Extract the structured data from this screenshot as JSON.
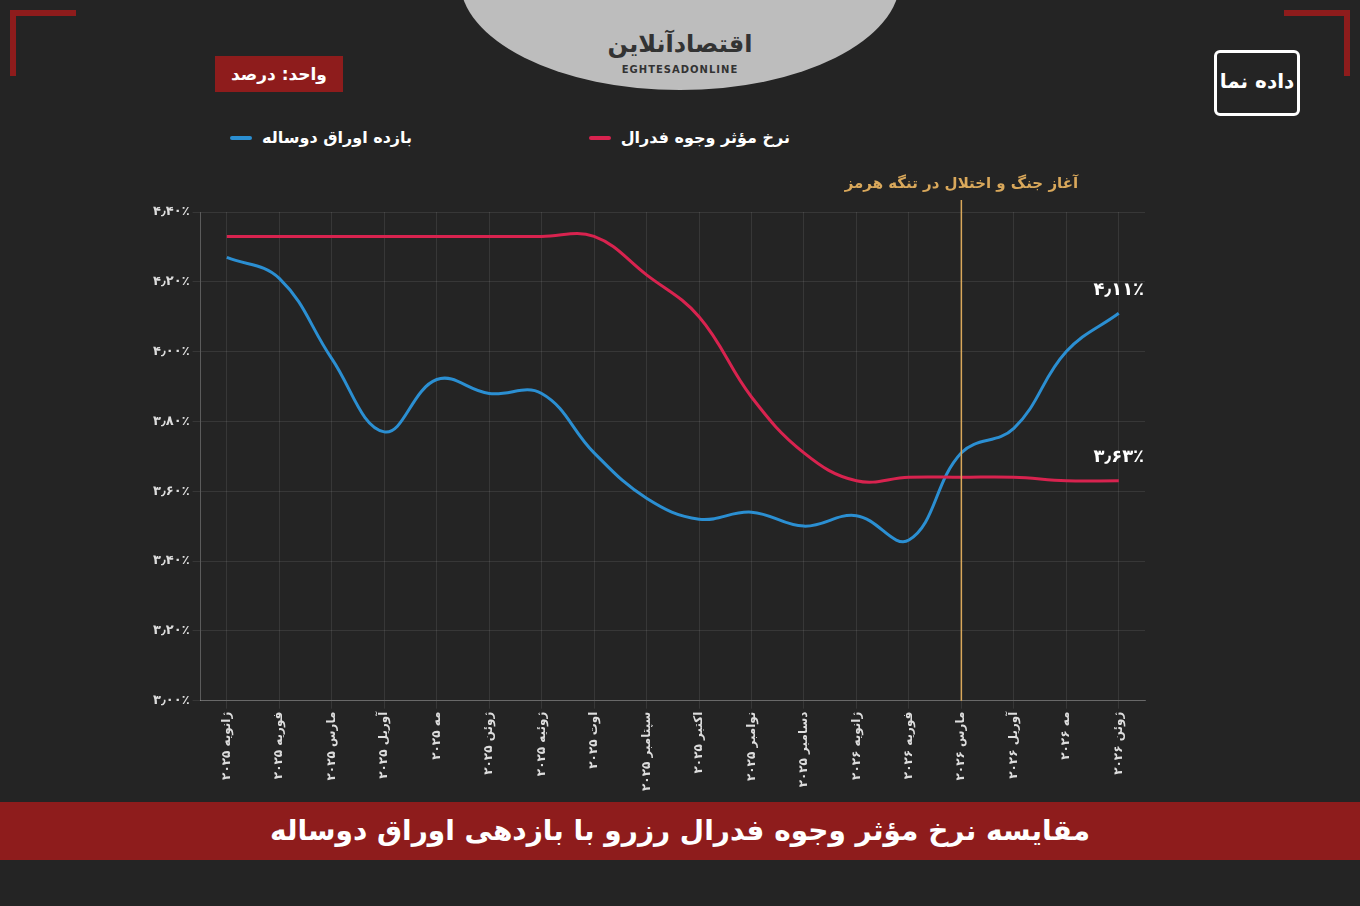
{
  "chart_data": {
    "type": "line",
    "title": "مقایسه نرخ مؤثر وجوه فدرال رزرو با بازدهی اوراق دوساله",
    "unit": "واحد: درصد",
    "categories": [
      "ژانویه ۲۰۲۵",
      "فوریه ۲۰۲۵",
      "مارس ۲۰۲۵",
      "آوریل ۲۰۲۵",
      "مه ۲۰۲۵",
      "ژوئن ۲۰۲۵",
      "ژوئیه ۲۰۲۵",
      "اوت ۲۰۲۵",
      "سپتامبر ۲۰۲۵",
      "اکتبر ۲۰۲۵",
      "نوامبر ۲۰۲۵",
      "دسامبر ۲۰۲۵",
      "ژانویه ۲۰۲۶",
      "فوریه ۲۰۲۶",
      "مارس ۲۰۲۶",
      "آوریل ۲۰۲۶",
      "مه ۲۰۲۶",
      "ژوئن ۲۰۲۶"
    ],
    "series": [
      {
        "name": "نرخ مؤثر وجوه فدرال",
        "color": "#d8234f",
        "values": [
          4.33,
          4.33,
          4.33,
          4.33,
          4.33,
          4.33,
          4.33,
          4.33,
          4.22,
          4.1,
          3.87,
          3.71,
          3.63,
          3.64,
          3.64,
          3.64,
          3.63,
          3.63
        ],
        "value_labels": [
          null,
          null,
          null,
          null,
          null,
          null,
          null,
          null,
          null,
          null,
          null,
          null,
          null,
          null,
          null,
          null,
          null,
          "۳٫۶۳٪"
        ]
      },
      {
        "name": "بازده اوراق دوساله",
        "color": "#2b8fd2",
        "values": [
          4.27,
          4.21,
          3.98,
          3.77,
          3.92,
          3.88,
          3.88,
          3.71,
          3.58,
          3.52,
          3.54,
          3.5,
          3.53,
          3.46,
          3.71,
          3.78,
          4.0,
          4.11
        ],
        "value_labels": [
          null,
          null,
          null,
          null,
          null,
          null,
          null,
          null,
          null,
          null,
          null,
          null,
          null,
          null,
          null,
          null,
          null,
          "۴٫۱۱٪"
        ]
      }
    ],
    "ylim": [
      3.0,
      4.4
    ],
    "yticks": [
      {
        "value": 3.0,
        "label": "۳٫۰۰٪"
      },
      {
        "value": 3.2,
        "label": "۳٫۲۰٪"
      },
      {
        "value": 3.4,
        "label": "۳٫۴۰٪"
      },
      {
        "value": 3.6,
        "label": "۳٫۶۰٪"
      },
      {
        "value": 3.8,
        "label": "۳٫۸۰٪"
      },
      {
        "value": 4.0,
        "label": "۴٫۰۰٪"
      },
      {
        "value": 4.2,
        "label": "۴٫۲۰٪"
      },
      {
        "value": 4.4,
        "label": "۴٫۴۰٪"
      }
    ],
    "grid": true,
    "legend": "top",
    "annotations": [
      {
        "x": "مارس ۲۰۲۶",
        "text": "آغاز جنگ و اختلال در تنگه هرمز",
        "color": "#d9a85b"
      }
    ]
  },
  "branding": {
    "publisher": "اقتصادآنلاین",
    "publisher_latin": "EGHTESADONLINE",
    "section": "داده نما"
  }
}
